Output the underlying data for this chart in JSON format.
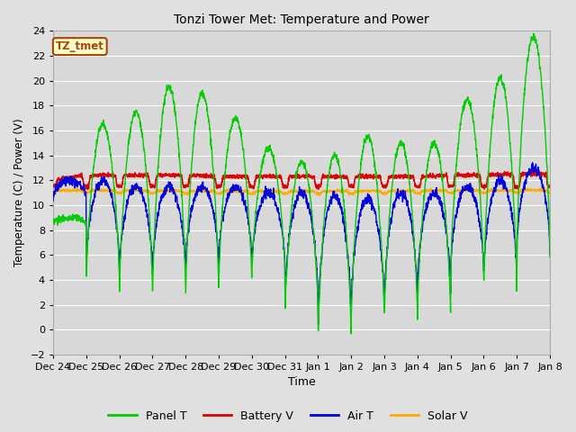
{
  "title": "Tonzi Tower Met: Temperature and Power",
  "xlabel": "Time",
  "ylabel": "Temperature (C) / Power (V)",
  "ylim": [
    -2,
    24
  ],
  "yticks": [
    -2,
    0,
    2,
    4,
    6,
    8,
    10,
    12,
    14,
    16,
    18,
    20,
    22,
    24
  ],
  "xtick_labels": [
    "Dec 24",
    "Dec 25",
    "Dec 26",
    "Dec 27",
    "Dec 28",
    "Dec 29",
    "Dec 30",
    "Dec 31",
    "Jan 1",
    "Jan 2",
    "Jan 3",
    "Jan 4",
    "Jan 5",
    "Jan 6",
    "Jan 7",
    "Jan 8"
  ],
  "bg_color": "#e0e0e0",
  "plot_bg_color": "#d8d8d8",
  "grid_color": "#ffffff",
  "colors": {
    "panel_t": "#00cc00",
    "battery_v": "#dd0000",
    "air_t": "#0000dd",
    "solar_v": "#ffaa00"
  },
  "legend_label": "TZ_tmet",
  "legend_bg": "#ffffcc",
  "legend_border": "#aa4400",
  "n_days": 15
}
